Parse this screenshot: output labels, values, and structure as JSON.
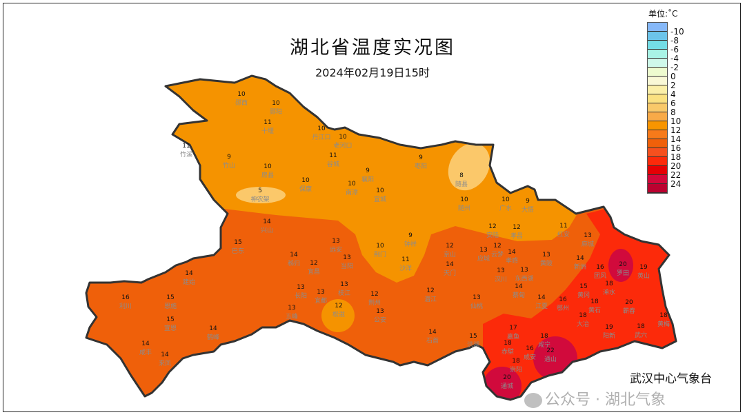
{
  "title": "湖北省温度实况图",
  "subtitle": "2024年02月19日15时",
  "legend": {
    "unit": "单位:˚C",
    "colors": [
      "#86b8f8",
      "#6cc4ea",
      "#74dde6",
      "#a9f3e6",
      "#cff8ea",
      "#eefbcf",
      "#f9f8d6",
      "#fbefa8",
      "#fbe181",
      "#f9c96a",
      "#f8aa48",
      "#f89500",
      "#f77a1a",
      "#ef600a",
      "#f5501e",
      "#fc2a0a",
      "#e60004",
      "#d4083a",
      "#bb0230"
    ],
    "labels": [
      "-10",
      "-8",
      "-6",
      "-4",
      "-2",
      "0",
      "2",
      "4",
      "6",
      "8",
      "10",
      "12",
      "14",
      "16",
      "18",
      "20",
      "22",
      "24"
    ]
  },
  "zone_colors": {
    "t10": "#f59300",
    "t14": "#ef600a",
    "t18": "#fc2a0a",
    "t20": "#d10a3c",
    "t6": "#fbc86a",
    "outline": "#333333"
  },
  "stations": [
    {
      "name": "郧西",
      "t": "10"
    },
    {
      "name": "郧阳",
      "t": "10"
    },
    {
      "name": "十堰",
      "t": "11"
    },
    {
      "name": "丹江口",
      "t": "10"
    },
    {
      "name": "老河口",
      "t": "10"
    },
    {
      "name": "谷城",
      "t": "11"
    },
    {
      "name": "竹溪",
      "t": "11"
    },
    {
      "name": "竹山",
      "t": "9"
    },
    {
      "name": "房县",
      "t": "10"
    },
    {
      "name": "神农架",
      "t": "5"
    },
    {
      "name": "保康",
      "t": "10"
    },
    {
      "name": "南漳",
      "t": "10"
    },
    {
      "name": "襄阳",
      "t": "9"
    },
    {
      "name": "宜城",
      "t": "10"
    },
    {
      "name": "枣阳",
      "t": "9"
    },
    {
      "name": "随县",
      "t": "8"
    },
    {
      "name": "随州",
      "t": "10"
    },
    {
      "name": "广水",
      "t": "10"
    },
    {
      "name": "大悟",
      "t": "9"
    },
    {
      "name": "安陆",
      "t": "12"
    },
    {
      "name": "孝昌",
      "t": "12"
    },
    {
      "name": "红安",
      "t": "11"
    },
    {
      "name": "麻城",
      "t": "13"
    },
    {
      "name": "京山",
      "t": "12"
    },
    {
      "name": "应城",
      "t": "13"
    },
    {
      "name": "云梦",
      "t": "12"
    },
    {
      "name": "孝感",
      "t": "14"
    },
    {
      "name": "黄陂",
      "t": "13"
    },
    {
      "name": "新洲",
      "t": "14"
    },
    {
      "name": "罗田",
      "t": "20"
    },
    {
      "name": "英山",
      "t": "19"
    },
    {
      "name": "团风",
      "t": "16"
    },
    {
      "name": "黄冈",
      "t": "15"
    },
    {
      "name": "浠水",
      "t": "18"
    },
    {
      "name": "鄂州",
      "t": "16"
    },
    {
      "name": "黄石",
      "t": "18"
    },
    {
      "name": "大冶",
      "t": "18"
    },
    {
      "name": "蕲春",
      "t": "20"
    },
    {
      "name": "黄梅",
      "t": "18"
    },
    {
      "name": "武穴",
      "t": "18"
    },
    {
      "name": "阳新",
      "t": "19"
    },
    {
      "name": "钟祥",
      "t": "9"
    },
    {
      "name": "荆门",
      "t": "10"
    },
    {
      "name": "沙洋",
      "t": "11"
    },
    {
      "name": "天门",
      "t": "14"
    },
    {
      "name": "汉川",
      "t": "13"
    },
    {
      "name": "东西湖",
      "t": "13"
    },
    {
      "name": "蔡甸",
      "t": "14"
    },
    {
      "name": "江夏",
      "t": "14"
    },
    {
      "name": "潜江",
      "t": "12"
    },
    {
      "name": "仙桃",
      "t": "13"
    },
    {
      "name": "荆州",
      "t": "12"
    },
    {
      "name": "公安",
      "t": "13"
    },
    {
      "name": "石首",
      "t": "14"
    },
    {
      "name": "洪湖",
      "t": "15"
    },
    {
      "name": "嘉鱼",
      "t": "17"
    },
    {
      "name": "咸宁",
      "t": "18"
    },
    {
      "name": "赤壁",
      "t": "18"
    },
    {
      "name": "崇阳",
      "t": "18"
    },
    {
      "name": "通山",
      "t": "22"
    },
    {
      "name": "通城",
      "t": "20"
    },
    {
      "name": "咸安",
      "t": "16"
    },
    {
      "name": "松滋",
      "t": "12"
    },
    {
      "name": "宜都",
      "t": "13"
    },
    {
      "name": "枝江",
      "t": "13"
    },
    {
      "name": "当阳",
      "t": "13"
    },
    {
      "name": "远安",
      "t": "13"
    },
    {
      "name": "长阳",
      "t": "13"
    },
    {
      "name": "五峰",
      "t": "13"
    },
    {
      "name": "兴山",
      "t": "14"
    },
    {
      "name": "巴东",
      "t": "15"
    },
    {
      "name": "秭归",
      "t": "14"
    },
    {
      "name": "宜昌",
      "t": "12"
    },
    {
      "name": "建始",
      "t": "14"
    },
    {
      "name": "利川",
      "t": "16"
    },
    {
      "name": "恩施",
      "t": "15"
    },
    {
      "name": "宣恩",
      "t": "15"
    },
    {
      "name": "鹤峰",
      "t": "14"
    },
    {
      "name": "咸丰",
      "t": "14"
    },
    {
      "name": "来凤",
      "t": "14"
    }
  ],
  "watermark": "公众号 · 湖北气象",
  "organization": "武汉中心气象台"
}
